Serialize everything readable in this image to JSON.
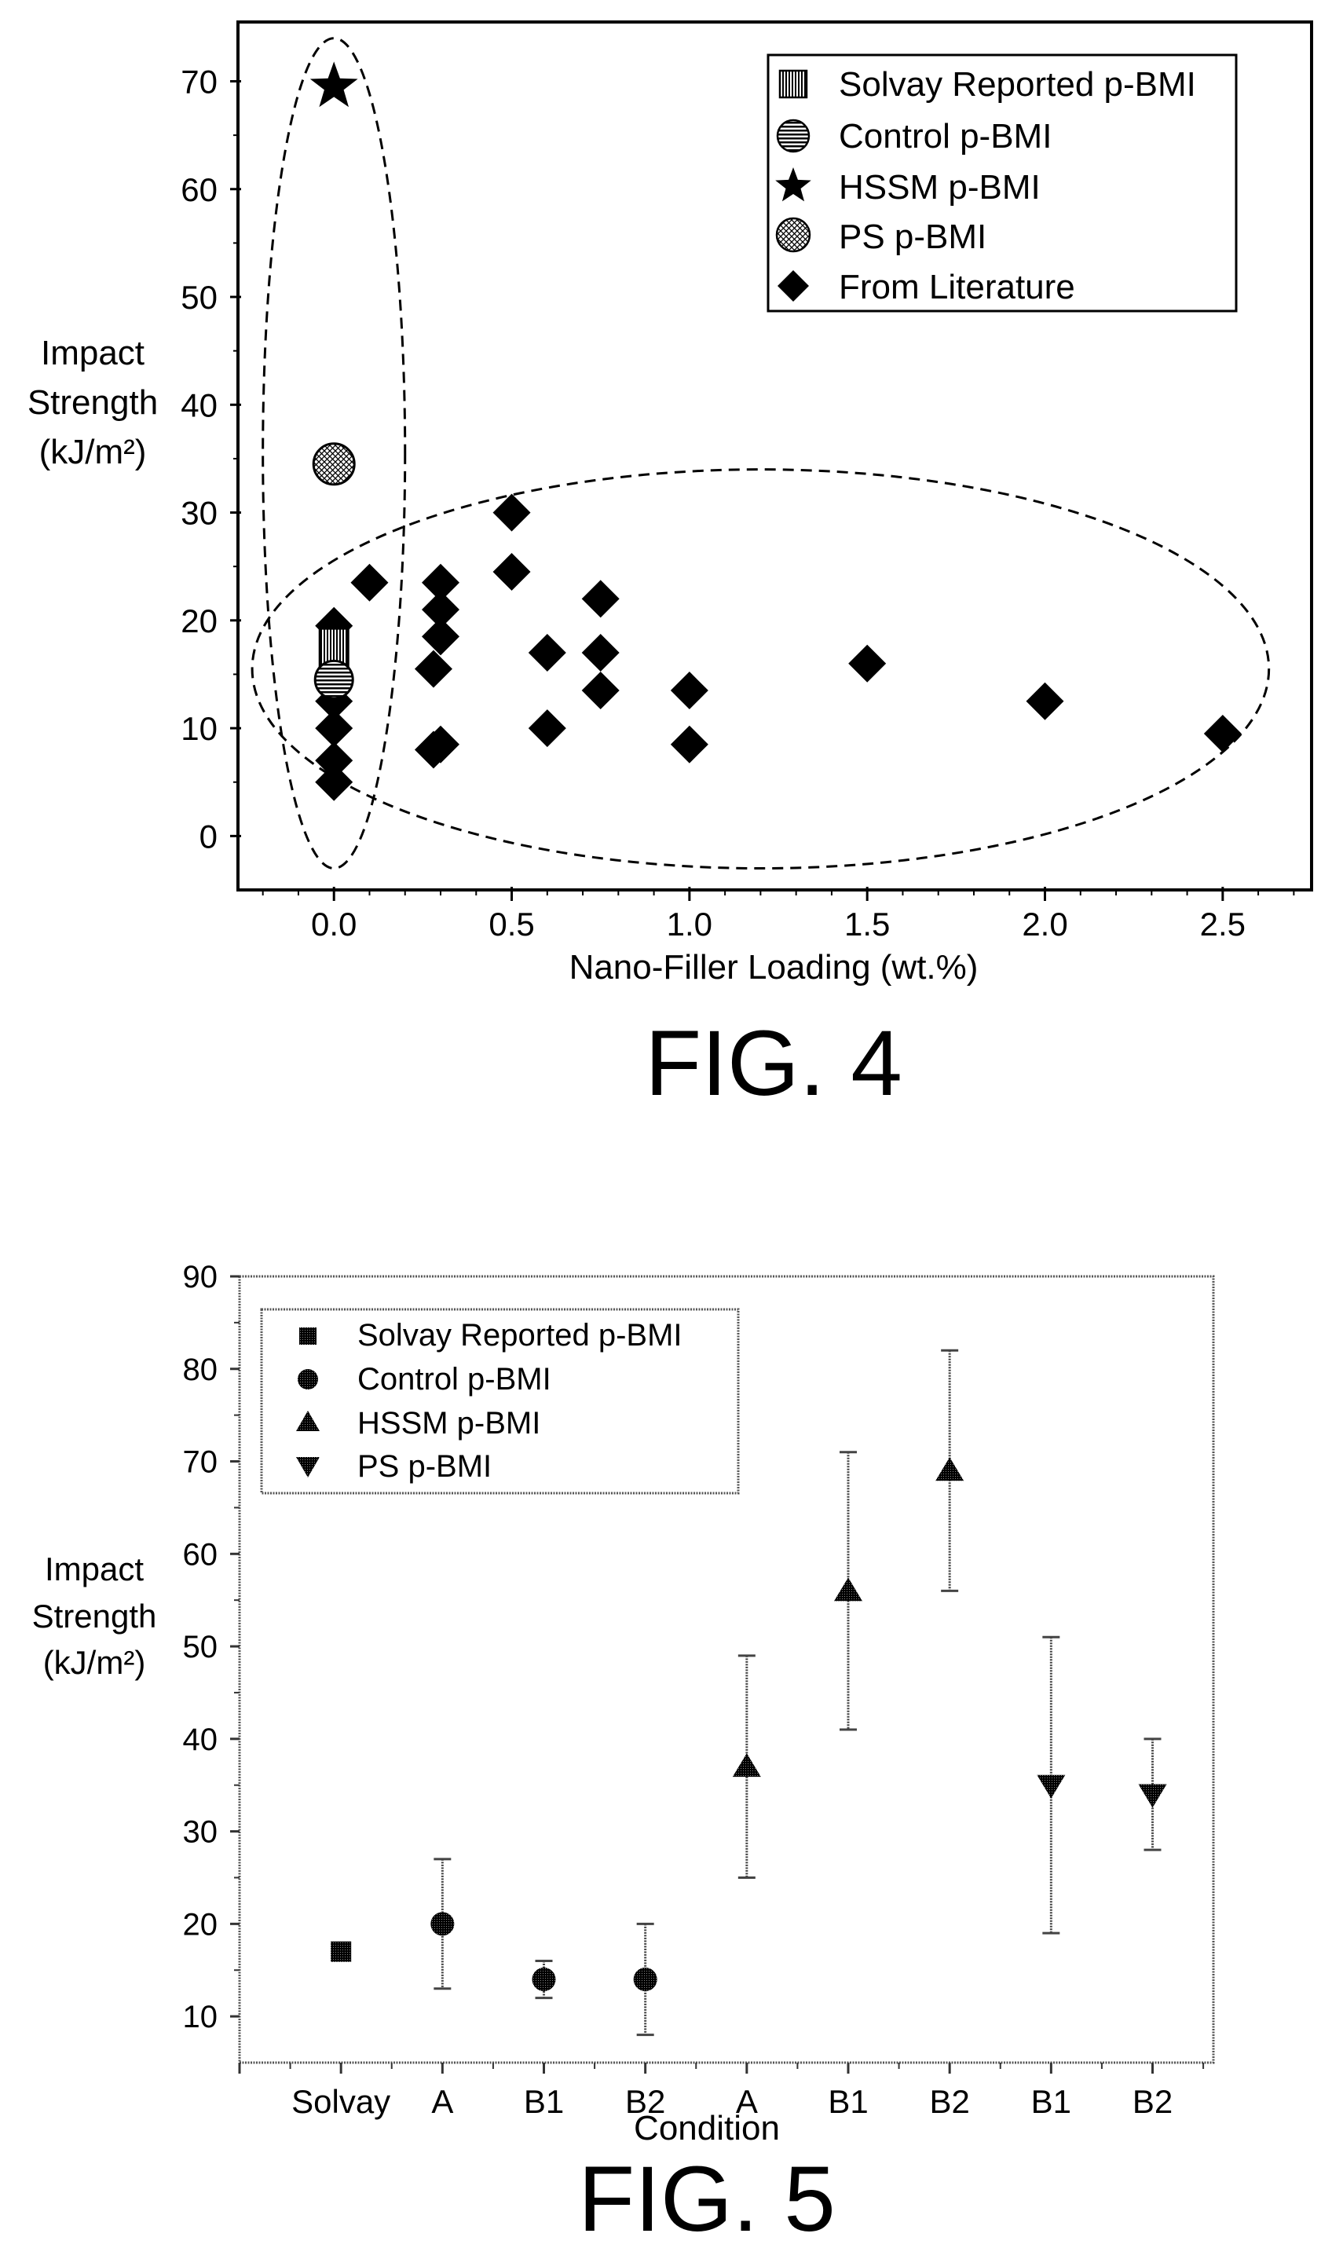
{
  "figures": [
    {
      "label": "FIG. 4"
    },
    {
      "label": "FIG. 5"
    }
  ],
  "chart_data": [
    {
      "type": "scatter",
      "title": "",
      "xlabel": "Nano-Filler Loading (wt.%)",
      "ylabel_lines": [
        "Impact",
        "Strength",
        "(kJ/m²)"
      ],
      "xlim": [
        -0.27,
        2.75
      ],
      "ylim": [
        -5,
        75.5
      ],
      "xticks": [
        0.0,
        0.5,
        1.0,
        1.5,
        2.0,
        2.5
      ],
      "xtick_labels": [
        "0.0",
        "0.5",
        "1.0",
        "1.5",
        "2.0",
        "2.5"
      ],
      "yticks": [
        0,
        10,
        20,
        30,
        40,
        50,
        60,
        70
      ],
      "ytick_labels": [
        "0",
        "10",
        "20",
        "30",
        "40",
        "50",
        "60",
        "70"
      ],
      "legend_position": "top-right",
      "series": [
        {
          "name": "Solvay Reported p-BMI",
          "marker": "striped-square",
          "points": [
            [
              0.0,
              17.5
            ]
          ]
        },
        {
          "name": "Control p-BMI",
          "marker": "striped-circle",
          "points": [
            [
              0.0,
              14.5
            ]
          ]
        },
        {
          "name": "HSSM p-BMI",
          "marker": "star",
          "points": [
            [
              0.0,
              69.5
            ]
          ]
        },
        {
          "name": "PS p-BMI",
          "marker": "hatched-circle",
          "points": [
            [
              0.0,
              34.5
            ]
          ]
        },
        {
          "name": "From Literature",
          "marker": "diamond",
          "points": [
            [
              0.0,
              19.5
            ],
            [
              0.0,
              12.5
            ],
            [
              0.0,
              10.0
            ],
            [
              0.0,
              7.0
            ],
            [
              0.0,
              5.0
            ],
            [
              0.1,
              23.5
            ],
            [
              0.28,
              15.5
            ],
            [
              0.28,
              8.0
            ],
            [
              0.3,
              23.5
            ],
            [
              0.3,
              21.0
            ],
            [
              0.3,
              18.5
            ],
            [
              0.3,
              8.5
            ],
            [
              0.5,
              30.0
            ],
            [
              0.5,
              24.5
            ],
            [
              0.6,
              17.0
            ],
            [
              0.6,
              10.0
            ],
            [
              0.75,
              22.0
            ],
            [
              0.75,
              17.0
            ],
            [
              0.75,
              13.5
            ],
            [
              1.0,
              13.5
            ],
            [
              1.0,
              8.5
            ],
            [
              1.5,
              16.0
            ],
            [
              2.0,
              12.5
            ],
            [
              2.5,
              9.5
            ]
          ]
        }
      ],
      "annotations": [
        {
          "shape": "dashed-ellipse",
          "center": [
            0.0,
            35.5
          ],
          "radius_x": 0.2,
          "radius_y": 38.5
        },
        {
          "shape": "dashed-ellipse",
          "center": [
            1.2,
            15.5
          ],
          "radius_x": 1.43,
          "radius_y": 18.5
        }
      ]
    },
    {
      "type": "scatter",
      "title": "",
      "xlabel": "Condition",
      "ylabel_lines": [
        "Impact",
        "Strength",
        "(kJ/m²)"
      ],
      "categories": [
        "Solvay",
        "A",
        "B1",
        "B2",
        "A",
        "B1",
        "B2",
        "B1",
        "B2"
      ],
      "xlim": [
        -1.0,
        8.6
      ],
      "ylim": [
        5,
        90
      ],
      "yticks": [
        10,
        20,
        30,
        40,
        50,
        60,
        70,
        80,
        90
      ],
      "ytick_labels": [
        "10",
        "20",
        "30",
        "40",
        "50",
        "60",
        "70",
        "80",
        "90"
      ],
      "legend_position": "top-left",
      "series": [
        {
          "name": "Solvay Reported p-BMI",
          "marker": "square",
          "points": [
            {
              "x": 0,
              "y": 17,
              "low": 17,
              "high": 17
            }
          ]
        },
        {
          "name": "Control p-BMI",
          "marker": "circle",
          "points": [
            {
              "x": 1,
              "y": 20,
              "low": 13,
              "high": 27
            },
            {
              "x": 2,
              "y": 14,
              "low": 12,
              "high": 16
            },
            {
              "x": 3,
              "y": 14,
              "low": 8,
              "high": 20
            }
          ]
        },
        {
          "name": "HSSM p-BMI",
          "marker": "triangle-up",
          "points": [
            {
              "x": 4,
              "y": 37,
              "low": 25,
              "high": 49
            },
            {
              "x": 5,
              "y": 56,
              "low": 41,
              "high": 71
            },
            {
              "x": 6,
              "y": 69,
              "low": 56,
              "high": 82
            }
          ]
        },
        {
          "name": "PS p-BMI",
          "marker": "triangle-down",
          "points": [
            {
              "x": 7,
              "y": 35,
              "low": 19,
              "high": 51
            },
            {
              "x": 8,
              "y": 34,
              "low": 28,
              "high": 40
            }
          ]
        }
      ]
    }
  ]
}
